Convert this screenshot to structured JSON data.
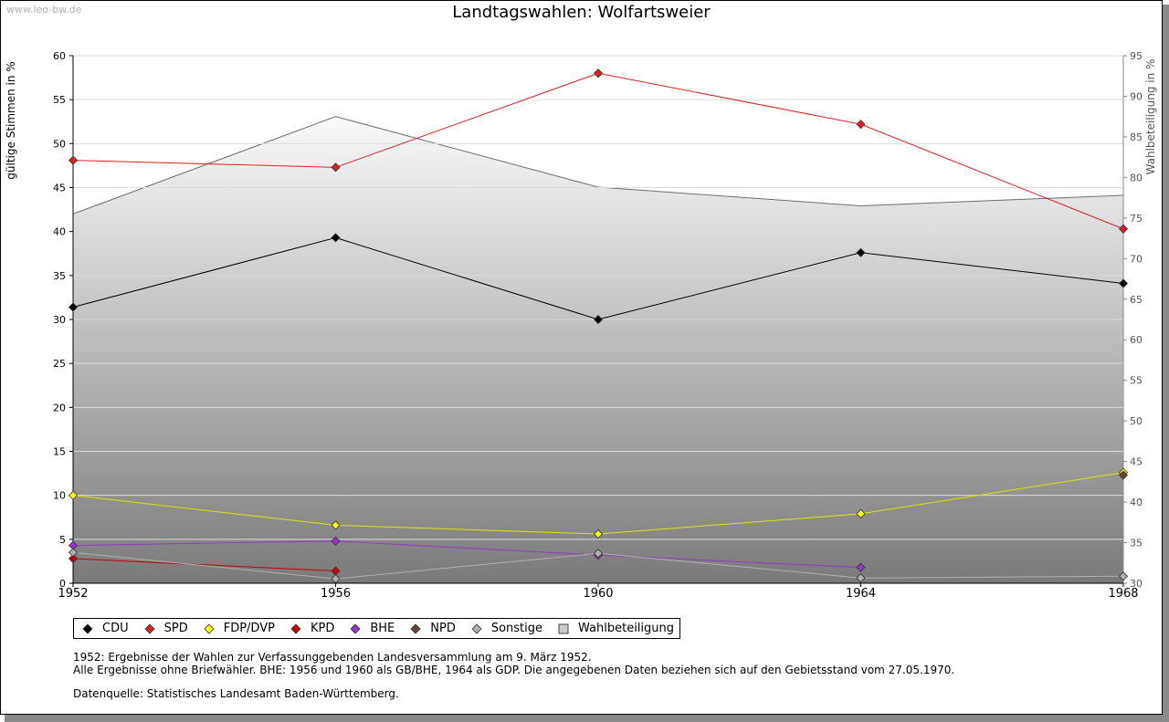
{
  "watermark": "www.leo-bw.de",
  "chart_data": {
    "type": "line",
    "title": "Landtagswahlen: Wolfartsweier",
    "x": [
      1952,
      1956,
      1960,
      1964,
      1968
    ],
    "xlabels": [
      "1952",
      "1956",
      "1960",
      "1964",
      "1968"
    ],
    "ylabel": "gültige Stimmen in %",
    "ylim": [
      0,
      60
    ],
    "yticks": [
      0,
      5,
      10,
      15,
      20,
      25,
      30,
      35,
      40,
      45,
      50,
      55,
      60
    ],
    "y2label": "Wahlbeteiligung in %",
    "y2lim": [
      30,
      95
    ],
    "y2ticks": [
      30,
      35,
      40,
      45,
      50,
      55,
      60,
      65,
      70,
      75,
      80,
      85,
      90,
      95
    ],
    "grid": true,
    "series": [
      {
        "name": "CDU",
        "color": "#000000",
        "values": [
          31.4,
          39.3,
          30.0,
          37.6,
          34.1
        ]
      },
      {
        "name": "SPD",
        "color": "#e02020",
        "values": [
          48.1,
          47.3,
          58.0,
          52.2,
          40.3
        ]
      },
      {
        "name": "FDP/DVP",
        "color": "#ffff00",
        "line_color": "#e3e300",
        "values": [
          10.0,
          6.6,
          5.6,
          7.9,
          12.6
        ]
      },
      {
        "name": "KPD",
        "color": "#cc0000",
        "values": [
          2.8,
          1.4,
          null,
          null,
          null
        ]
      },
      {
        "name": "BHE",
        "color": "#9933cc",
        "values": [
          4.3,
          4.8,
          3.2,
          1.8,
          null
        ]
      },
      {
        "name": "NPD",
        "color": "#664433",
        "values": [
          null,
          null,
          null,
          null,
          12.3
        ]
      },
      {
        "name": "Sonstige",
        "color": "#b0b0b0",
        "values": [
          3.5,
          0.5,
          3.4,
          0.6,
          0.8
        ]
      }
    ],
    "area_series": {
      "name": "Wahlbeteiligung",
      "axis": "y2",
      "values": [
        75.5,
        87.5,
        78.8,
        76.5,
        77.8
      ]
    }
  },
  "legend": [
    {
      "label": "CDU",
      "color": "#000000",
      "shape": "diamond"
    },
    {
      "label": "SPD",
      "color": "#e02020",
      "shape": "diamond"
    },
    {
      "label": "FDP/DVP",
      "color": "#ffff00",
      "shape": "diamond"
    },
    {
      "label": "KPD",
      "color": "#cc0000",
      "shape": "diamond"
    },
    {
      "label": "BHE",
      "color": "#9933cc",
      "shape": "diamond"
    },
    {
      "label": "NPD",
      "color": "#664433",
      "shape": "diamond"
    },
    {
      "label": "Sonstige",
      "color": "#b0b0b0",
      "shape": "diamond"
    },
    {
      "label": "Wahlbeteiligung",
      "color": "#cccccc",
      "shape": "square"
    }
  ],
  "notes": {
    "line1": "1952: Ergebnisse der Wahlen zur Verfassunggebenden Landesversammlung am 9. März 1952.",
    "line2": "Alle Ergebnisse ohne Briefwähler. BHE: 1956 und 1960 als GB/BHE, 1964 als GDP. Die angegebenen Daten beziehen sich auf den Gebietsstand vom 27.05.1970.",
    "source": "Datenquelle: Statistisches Landesamt Baden-Württemberg."
  }
}
